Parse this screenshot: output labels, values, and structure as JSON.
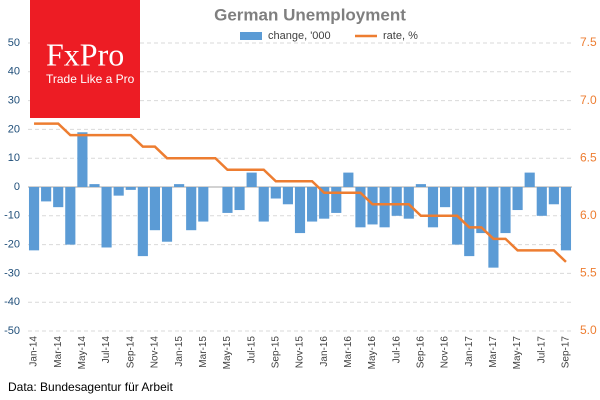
{
  "chart_data": {
    "type": "bar_line",
    "title": "German Unemployment",
    "source": "Data: Bundesagentur für Arbeit",
    "logo": {
      "name": "FxPro",
      "tagline": "Trade Like a Pro"
    },
    "categories": [
      "Jan-14",
      null,
      "Mar-14",
      null,
      "May-14",
      null,
      "Jul-14",
      null,
      "Sep-14",
      null,
      "Nov-14",
      null,
      "Jan-15",
      null,
      "Mar-15",
      null,
      "May-15",
      null,
      "Jul-15",
      null,
      "Sep-15",
      null,
      "Nov-15",
      null,
      "Jan-16",
      null,
      "Mar-16",
      null,
      "May-16",
      null,
      "Jul-16",
      null,
      "Sep-16",
      null,
      "Nov-16",
      null,
      "Jan-17",
      null,
      "Mar-17",
      null,
      "May-17",
      null,
      "Jul-17",
      null,
      "Sep-17"
    ],
    "series": [
      {
        "name": "change, '000",
        "color": "#5b9bd5",
        "kind": "bar",
        "values": [
          -22,
          -5,
          -7,
          -20,
          19,
          1,
          -21,
          -3,
          -1,
          -24,
          -15,
          -19,
          1,
          -15,
          -12,
          0,
          -9,
          -8,
          5,
          -12,
          -4,
          -6,
          -16,
          -12,
          -11,
          -9,
          5,
          -14,
          -13,
          -14,
          -10,
          -11,
          1,
          -14,
          -7,
          -20,
          -24,
          -16,
          -28,
          -16,
          -8,
          5,
          -10,
          -6,
          -22
        ]
      },
      {
        "name": "rate, %",
        "color": "#ed7d31",
        "kind": "line",
        "axis": "y2",
        "values": [
          6.8,
          6.8,
          6.8,
          6.7,
          6.7,
          6.7,
          6.7,
          6.7,
          6.7,
          6.6,
          6.6,
          6.5,
          6.5,
          6.5,
          6.5,
          6.5,
          6.4,
          6.4,
          6.4,
          6.4,
          6.3,
          6.3,
          6.3,
          6.3,
          6.2,
          6.2,
          6.2,
          6.2,
          6.1,
          6.1,
          6.1,
          6.1,
          6.0,
          6.0,
          6.0,
          6.0,
          5.9,
          5.9,
          5.8,
          5.8,
          5.7,
          5.7,
          5.7,
          5.7,
          5.6
        ]
      }
    ],
    "ylim": [
      -50,
      50
    ],
    "yticks": [
      -50,
      -40,
      -30,
      -20,
      -10,
      0,
      10,
      20,
      30,
      40,
      50
    ],
    "y2lim": [
      5,
      7.5
    ],
    "y2ticks": [
      {
        "value": 5,
        "label": "5.0"
      },
      5.5,
      {
        "value": 6,
        "label": "6.0"
      },
      6.5,
      {
        "value": 7,
        "label": "7.0"
      },
      7.5
    ],
    "grid": true,
    "legend": "top"
  }
}
